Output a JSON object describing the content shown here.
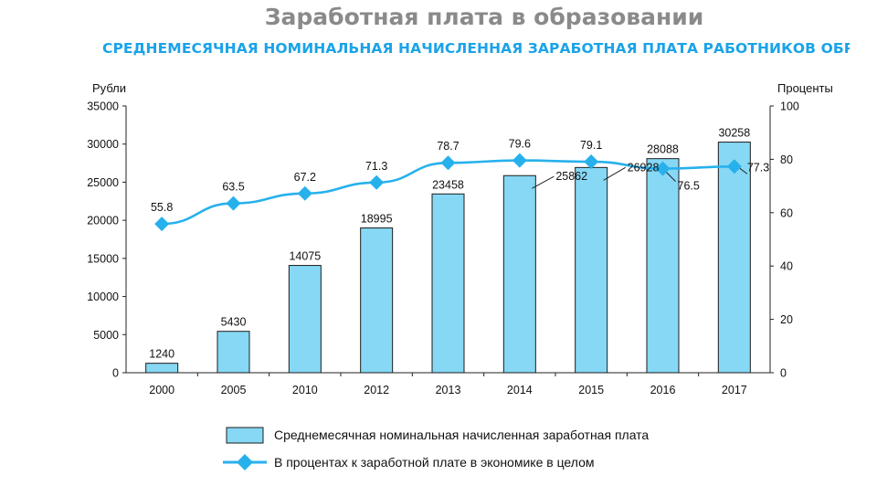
{
  "title": "Заработная плата в образовании",
  "subtitle": "СРЕДНЕМЕСЯЧНАЯ НОМИНАЛЬНАЯ НАЧИСЛЕННАЯ ЗАРАБОТНАЯ ПЛАТА РАБОТНИКОВ ОБРАЗОВАНИЯ",
  "colors": {
    "bar": "#86d8f5",
    "line": "#27b1ec",
    "title": "#8a8a8a",
    "subtitle": "#1aa3e8"
  },
  "chart_data": {
    "type": "bar+line",
    "categories": [
      "2000",
      "2005",
      "2010",
      "2012",
      "2013",
      "2014",
      "2015",
      "2016",
      "2017"
    ],
    "series": [
      {
        "name": "Среднемесячная номинальная начисленная заработная плата",
        "type": "bar",
        "axis": "left",
        "values": [
          1240,
          5430,
          14075,
          18995,
          23458,
          25862,
          26928,
          28088,
          30258
        ]
      },
      {
        "name": "В процентах к заработной плате в экономике в целом",
        "type": "line",
        "axis": "right",
        "values": [
          55.8,
          63.5,
          67.2,
          71.3,
          78.7,
          79.6,
          79.1,
          76.5,
          77.3
        ]
      }
    ],
    "bar_labels": [
      "1240",
      "5430",
      "14075",
      "18995",
      "23458",
      "25862",
      "26928",
      "28088",
      "30258"
    ],
    "line_labels": [
      "55.8",
      "63.5",
      "67.2",
      "71.3",
      "78.7",
      "79.6",
      "79.1",
      "76.5",
      "77.3"
    ],
    "y_left": {
      "label": "Рубли",
      "range": [
        0,
        35000
      ],
      "ticks": [
        "0",
        "5000",
        "10000",
        "15000",
        "20000",
        "25000",
        "30000",
        "35000"
      ]
    },
    "y_right": {
      "label": "Проценты",
      "range": [
        0,
        100
      ],
      "ticks": [
        "0",
        "20",
        "40",
        "60",
        "80",
        "100"
      ]
    },
    "grid": false,
    "legend_position": "bottom"
  }
}
